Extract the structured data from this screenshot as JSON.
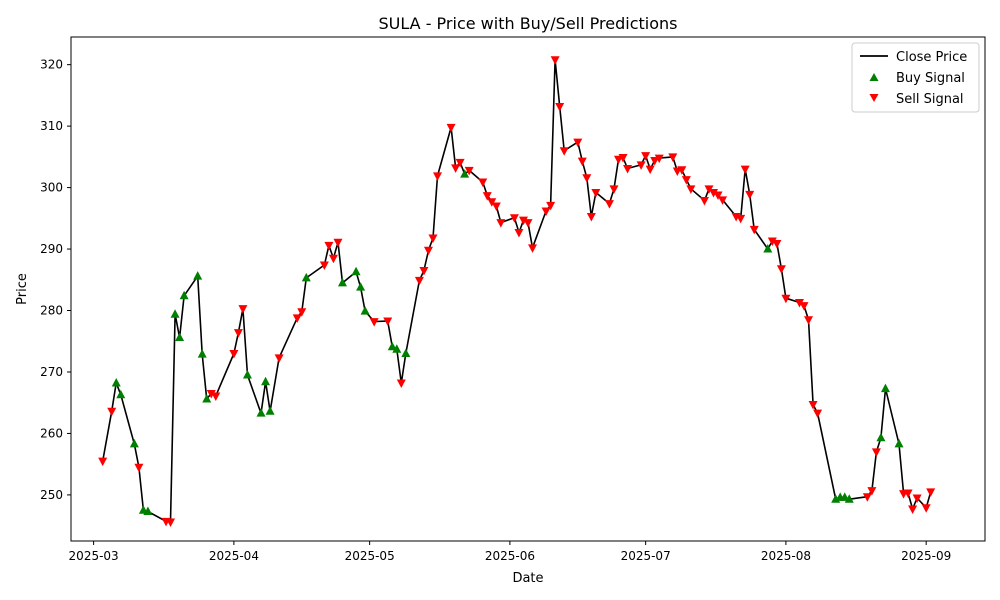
{
  "chart_data": {
    "type": "line",
    "title": "SULA - Price with Buy/Sell Predictions",
    "xlabel": "Date",
    "ylabel": "Price",
    "xlim": [
      "2025-02-24",
      "2025-09-14"
    ],
    "ylim": [
      242.5,
      324.5
    ],
    "x_ticks": [
      "2025-03",
      "2025-04",
      "2025-05",
      "2025-06",
      "2025-07",
      "2025-08",
      "2025-09"
    ],
    "y_ticks": [
      250,
      260,
      270,
      280,
      290,
      300,
      310,
      320
    ],
    "grid": false,
    "legend_position": "top-right",
    "colors": {
      "close": "#000000",
      "buy": "#008000",
      "sell": "#ff0000"
    },
    "series": [
      {
        "name": "Close Price",
        "style": "line",
        "points": [
          [
            "2025-03-03",
            255.5
          ],
          [
            "2025-03-05",
            263.6
          ],
          [
            "2025-03-06",
            268.2
          ],
          [
            "2025-03-07",
            266.3
          ],
          [
            "2025-03-10",
            258.3
          ],
          [
            "2025-03-11",
            254.5
          ],
          [
            "2025-03-12",
            247.5
          ],
          [
            "2025-03-13",
            247.3
          ],
          [
            "2025-03-17",
            245.7
          ],
          [
            "2025-03-18",
            245.6
          ],
          [
            "2025-03-19",
            279.4
          ],
          [
            "2025-03-20",
            275.6
          ],
          [
            "2025-03-21",
            282.4
          ],
          [
            "2025-03-24",
            285.6
          ],
          [
            "2025-03-25",
            272.9
          ],
          [
            "2025-03-26",
            265.6
          ],
          [
            "2025-03-27",
            266.5
          ],
          [
            "2025-03-28",
            266.1
          ],
          [
            "2025-04-01",
            273.0
          ],
          [
            "2025-04-02",
            276.4
          ],
          [
            "2025-04-03",
            280.3
          ],
          [
            "2025-04-04",
            269.5
          ],
          [
            "2025-04-07",
            263.3
          ],
          [
            "2025-04-08",
            268.4
          ],
          [
            "2025-04-09",
            263.6
          ],
          [
            "2025-04-11",
            272.3
          ],
          [
            "2025-04-15",
            278.8
          ],
          [
            "2025-04-16",
            279.8
          ],
          [
            "2025-04-17",
            285.3
          ],
          [
            "2025-04-21",
            287.4
          ],
          [
            "2025-04-22",
            290.6
          ],
          [
            "2025-04-23",
            288.5
          ],
          [
            "2025-04-24",
            291.1
          ],
          [
            "2025-04-25",
            284.5
          ],
          [
            "2025-04-28",
            286.3
          ],
          [
            "2025-04-29",
            283.8
          ],
          [
            "2025-04-30",
            279.9
          ],
          [
            "2025-05-02",
            278.2
          ],
          [
            "2025-05-05",
            278.3
          ],
          [
            "2025-05-06",
            274.1
          ],
          [
            "2025-05-07",
            273.7
          ],
          [
            "2025-05-08",
            268.2
          ],
          [
            "2025-05-09",
            273.0
          ],
          [
            "2025-05-12",
            284.9
          ],
          [
            "2025-05-13",
            286.5
          ],
          [
            "2025-05-14",
            289.8
          ],
          [
            "2025-05-15",
            291.8
          ],
          [
            "2025-05-16",
            301.9
          ],
          [
            "2025-05-19",
            309.8
          ],
          [
            "2025-05-20",
            303.2
          ],
          [
            "2025-05-21",
            304.1
          ],
          [
            "2025-05-22",
            302.2
          ],
          [
            "2025-05-23",
            302.8
          ],
          [
            "2025-05-26",
            300.9
          ],
          [
            "2025-05-27",
            298.7
          ],
          [
            "2025-05-28",
            297.7
          ],
          [
            "2025-05-29",
            297.0
          ],
          [
            "2025-05-30",
            294.3
          ],
          [
            "2025-06-02",
            295.1
          ],
          [
            "2025-06-03",
            292.7
          ],
          [
            "2025-06-04",
            294.7
          ],
          [
            "2025-06-05",
            294.3
          ],
          [
            "2025-06-06",
            290.2
          ],
          [
            "2025-06-09",
            296.2
          ],
          [
            "2025-06-10",
            297.1
          ],
          [
            "2025-06-11",
            320.8
          ],
          [
            "2025-06-12",
            313.2
          ],
          [
            "2025-06-13",
            306.0
          ],
          [
            "2025-06-16",
            307.4
          ],
          [
            "2025-06-17",
            304.3
          ],
          [
            "2025-06-18",
            301.6
          ],
          [
            "2025-06-19",
            295.3
          ],
          [
            "2025-06-20",
            299.2
          ],
          [
            "2025-06-23",
            297.4
          ],
          [
            "2025-06-24",
            299.8
          ],
          [
            "2025-06-25",
            304.6
          ],
          [
            "2025-06-26",
            304.9
          ],
          [
            "2025-06-27",
            303.1
          ],
          [
            "2025-06-30",
            303.7
          ],
          [
            "2025-07-01",
            305.2
          ],
          [
            "2025-07-02",
            303.0
          ],
          [
            "2025-07-03",
            304.4
          ],
          [
            "2025-07-04",
            304.8
          ],
          [
            "2025-07-07",
            305.0
          ],
          [
            "2025-07-08",
            302.7
          ],
          [
            "2025-07-09",
            302.9
          ],
          [
            "2025-07-10",
            301.3
          ],
          [
            "2025-07-11",
            299.8
          ],
          [
            "2025-07-14",
            297.9
          ],
          [
            "2025-07-15",
            299.8
          ],
          [
            "2025-07-16",
            299.2
          ],
          [
            "2025-07-17",
            298.8
          ],
          [
            "2025-07-18",
            298.0
          ],
          [
            "2025-07-21",
            295.3
          ],
          [
            "2025-07-22",
            295.0
          ],
          [
            "2025-07-23",
            303.0
          ],
          [
            "2025-07-24",
            298.9
          ],
          [
            "2025-07-25",
            293.2
          ],
          [
            "2025-07-28",
            290.0
          ],
          [
            "2025-07-29",
            291.3
          ],
          [
            "2025-07-30",
            290.9
          ],
          [
            "2025-07-31",
            286.8
          ],
          [
            "2025-08-01",
            282.0
          ],
          [
            "2025-08-04",
            281.3
          ],
          [
            "2025-08-05",
            280.8
          ],
          [
            "2025-08-06",
            278.5
          ],
          [
            "2025-08-07",
            264.7
          ],
          [
            "2025-08-08",
            263.3
          ],
          [
            "2025-08-12",
            249.3
          ],
          [
            "2025-08-13",
            249.6
          ],
          [
            "2025-08-14",
            249.6
          ],
          [
            "2025-08-15",
            249.3
          ],
          [
            "2025-08-19",
            249.7
          ],
          [
            "2025-08-20",
            250.7
          ],
          [
            "2025-08-21",
            257.0
          ],
          [
            "2025-08-22",
            259.3
          ],
          [
            "2025-08-23",
            267.3
          ],
          [
            "2025-08-26",
            258.3
          ],
          [
            "2025-08-27",
            250.2
          ],
          [
            "2025-08-28",
            250.3
          ],
          [
            "2025-08-29",
            247.7
          ],
          [
            "2025-08-30",
            249.5
          ],
          [
            "2025-09-01",
            247.9
          ],
          [
            "2025-09-02",
            250.5
          ]
        ]
      },
      {
        "name": "Buy Signal",
        "style": "triangle-up",
        "points": [
          [
            "2025-03-06",
            268.2
          ],
          [
            "2025-03-07",
            266.3
          ],
          [
            "2025-03-10",
            258.3
          ],
          [
            "2025-03-12",
            247.5
          ],
          [
            "2025-03-13",
            247.3
          ],
          [
            "2025-03-19",
            279.4
          ],
          [
            "2025-03-20",
            275.6
          ],
          [
            "2025-03-21",
            282.4
          ],
          [
            "2025-03-24",
            285.6
          ],
          [
            "2025-03-25",
            272.9
          ],
          [
            "2025-03-26",
            265.6
          ],
          [
            "2025-04-04",
            269.5
          ],
          [
            "2025-04-07",
            263.3
          ],
          [
            "2025-04-08",
            268.4
          ],
          [
            "2025-04-09",
            263.6
          ],
          [
            "2025-04-17",
            285.3
          ],
          [
            "2025-04-25",
            284.5
          ],
          [
            "2025-04-28",
            286.3
          ],
          [
            "2025-04-29",
            283.8
          ],
          [
            "2025-04-30",
            279.9
          ],
          [
            "2025-05-06",
            274.1
          ],
          [
            "2025-05-07",
            273.7
          ],
          [
            "2025-05-09",
            273.0
          ],
          [
            "2025-05-22",
            302.2
          ],
          [
            "2025-07-28",
            290.0
          ],
          [
            "2025-08-12",
            249.3
          ],
          [
            "2025-08-13",
            249.6
          ],
          [
            "2025-08-14",
            249.6
          ],
          [
            "2025-08-15",
            249.3
          ],
          [
            "2025-08-22",
            259.3
          ],
          [
            "2025-08-23",
            267.3
          ],
          [
            "2025-08-26",
            258.3
          ]
        ]
      },
      {
        "name": "Sell Signal",
        "style": "triangle-down",
        "points": [
          [
            "2025-03-03",
            255.5
          ],
          [
            "2025-03-05",
            263.6
          ],
          [
            "2025-03-11",
            254.5
          ],
          [
            "2025-03-17",
            245.7
          ],
          [
            "2025-03-18",
            245.6
          ],
          [
            "2025-03-27",
            266.5
          ],
          [
            "2025-03-28",
            266.1
          ],
          [
            "2025-04-01",
            273.0
          ],
          [
            "2025-04-02",
            276.4
          ],
          [
            "2025-04-03",
            280.3
          ],
          [
            "2025-04-11",
            272.3
          ],
          [
            "2025-04-15",
            278.8
          ],
          [
            "2025-04-16",
            279.8
          ],
          [
            "2025-04-21",
            287.4
          ],
          [
            "2025-04-22",
            290.6
          ],
          [
            "2025-04-23",
            288.5
          ],
          [
            "2025-04-24",
            291.1
          ],
          [
            "2025-05-02",
            278.2
          ],
          [
            "2025-05-05",
            278.3
          ],
          [
            "2025-05-08",
            268.2
          ],
          [
            "2025-05-12",
            284.9
          ],
          [
            "2025-05-13",
            286.5
          ],
          [
            "2025-05-14",
            289.8
          ],
          [
            "2025-05-15",
            291.8
          ],
          [
            "2025-05-16",
            301.9
          ],
          [
            "2025-05-19",
            309.8
          ],
          [
            "2025-05-20",
            303.2
          ],
          [
            "2025-05-21",
            304.1
          ],
          [
            "2025-05-23",
            302.8
          ],
          [
            "2025-05-26",
            300.9
          ],
          [
            "2025-05-27",
            298.7
          ],
          [
            "2025-05-28",
            297.7
          ],
          [
            "2025-05-29",
            297.0
          ],
          [
            "2025-05-30",
            294.3
          ],
          [
            "2025-06-02",
            295.1
          ],
          [
            "2025-06-03",
            292.7
          ],
          [
            "2025-06-04",
            294.7
          ],
          [
            "2025-06-05",
            294.3
          ],
          [
            "2025-06-06",
            290.2
          ],
          [
            "2025-06-09",
            296.2
          ],
          [
            "2025-06-10",
            297.1
          ],
          [
            "2025-06-11",
            320.8
          ],
          [
            "2025-06-12",
            313.2
          ],
          [
            "2025-06-13",
            306.0
          ],
          [
            "2025-06-16",
            307.4
          ],
          [
            "2025-06-17",
            304.3
          ],
          [
            "2025-06-18",
            301.6
          ],
          [
            "2025-06-19",
            295.3
          ],
          [
            "2025-06-20",
            299.2
          ],
          [
            "2025-06-23",
            297.4
          ],
          [
            "2025-06-24",
            299.8
          ],
          [
            "2025-06-25",
            304.6
          ],
          [
            "2025-06-26",
            304.9
          ],
          [
            "2025-06-27",
            303.1
          ],
          [
            "2025-06-30",
            303.7
          ],
          [
            "2025-07-01",
            305.2
          ],
          [
            "2025-07-02",
            303.0
          ],
          [
            "2025-07-03",
            304.4
          ],
          [
            "2025-07-04",
            304.8
          ],
          [
            "2025-07-07",
            305.0
          ],
          [
            "2025-07-08",
            302.7
          ],
          [
            "2025-07-09",
            302.9
          ],
          [
            "2025-07-10",
            301.3
          ],
          [
            "2025-07-11",
            299.8
          ],
          [
            "2025-07-14",
            297.9
          ],
          [
            "2025-07-15",
            299.8
          ],
          [
            "2025-07-16",
            299.2
          ],
          [
            "2025-07-17",
            298.8
          ],
          [
            "2025-07-18",
            298.0
          ],
          [
            "2025-07-21",
            295.3
          ],
          [
            "2025-07-22",
            295.0
          ],
          [
            "2025-07-23",
            303.0
          ],
          [
            "2025-07-24",
            298.9
          ],
          [
            "2025-07-25",
            293.2
          ],
          [
            "2025-07-29",
            291.3
          ],
          [
            "2025-07-30",
            290.9
          ],
          [
            "2025-07-31",
            286.8
          ],
          [
            "2025-08-01",
            282.0
          ],
          [
            "2025-08-04",
            281.3
          ],
          [
            "2025-08-05",
            280.8
          ],
          [
            "2025-08-06",
            278.5
          ],
          [
            "2025-08-07",
            264.7
          ],
          [
            "2025-08-08",
            263.3
          ],
          [
            "2025-08-19",
            249.7
          ],
          [
            "2025-08-20",
            250.7
          ],
          [
            "2025-08-21",
            257.0
          ],
          [
            "2025-08-27",
            250.2
          ],
          [
            "2025-08-28",
            250.3
          ],
          [
            "2025-08-29",
            247.7
          ],
          [
            "2025-08-30",
            249.5
          ],
          [
            "2025-09-01",
            247.9
          ],
          [
            "2025-09-02",
            250.5
          ]
        ]
      }
    ]
  }
}
